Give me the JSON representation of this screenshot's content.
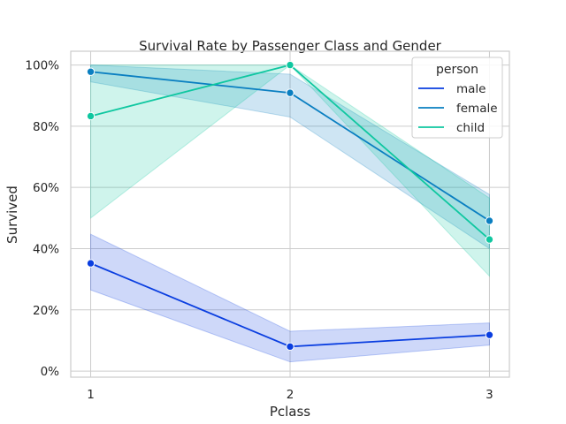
{
  "chart_data": {
    "type": "line",
    "title": "Survival Rate by Passenger Class and Gender",
    "xlabel": "Pclass",
    "ylabel": "Survived",
    "categories": [
      "1",
      "2",
      "3"
    ],
    "xlim": [
      0.9,
      3.1
    ],
    "ylim": [
      -0.02,
      1.045
    ],
    "yticks": [
      0,
      0.2,
      0.4,
      0.6,
      0.8,
      1.0
    ],
    "ytick_labels": [
      "0%",
      "20%",
      "40%",
      "60%",
      "80%",
      "100%"
    ],
    "grid": true,
    "legend": {
      "title": "person",
      "position": "top-right"
    },
    "series": [
      {
        "name": "male",
        "color": "#0a3ee0",
        "values": [
          0.352,
          0.08,
          0.118
        ],
        "ci_low": [
          0.265,
          0.03,
          0.085
        ],
        "ci_high": [
          0.447,
          0.13,
          0.157
        ]
      },
      {
        "name": "female",
        "color": "#0a7fc1",
        "values": [
          0.978,
          0.909,
          0.491
        ],
        "ci_low": [
          0.945,
          0.83,
          0.4
        ],
        "ci_high": [
          1.0,
          0.97,
          0.577
        ]
      },
      {
        "name": "child",
        "color": "#0fc7a0",
        "values": [
          0.833,
          1.0,
          0.43
        ],
        "ci_low": [
          0.5,
          1.0,
          0.31
        ],
        "ci_high": [
          1.0,
          1.0,
          0.565
        ]
      }
    ]
  }
}
